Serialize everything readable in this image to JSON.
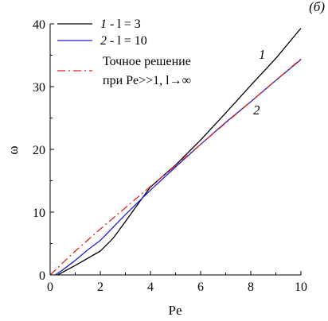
{
  "chart_data": {
    "type": "line",
    "panel_label": "(б)",
    "xlabel": "Pe",
    "ylabel": "ω",
    "xlim": [
      0,
      10
    ],
    "ylim": [
      0,
      40
    ],
    "xticks": [
      0,
      2,
      4,
      6,
      8,
      10
    ],
    "yticks": [
      0,
      10,
      20,
      30,
      40
    ],
    "legend_position": "top-left",
    "series": [
      {
        "legend_num": "1",
        "legend_rest": " - l = 3",
        "curve_label": "1",
        "color": "#000000",
        "dash": "solid",
        "x": [
          0.3,
          1.0,
          2.0,
          2.5,
          3.0,
          3.5,
          4.0,
          5.0,
          6.0,
          7.0,
          8.0,
          9.0,
          10.0
        ],
        "y": [
          0.0,
          1.5,
          3.8,
          5.8,
          8.5,
          11.3,
          14.0,
          17.5,
          21.5,
          25.8,
          30.2,
          34.5,
          39.3
        ]
      },
      {
        "legend_num": "2",
        "legend_rest": " - l = 10",
        "curve_label": "2",
        "color": "#1f1fd6",
        "dash": "solid",
        "x": [
          0.2,
          0.5,
          1.0,
          1.5,
          2.0,
          3.0,
          4.0,
          5.0,
          6.0,
          7.0,
          8.0,
          9.0,
          10.0
        ],
        "y": [
          0.0,
          0.8,
          2.3,
          4.0,
          5.5,
          9.6,
          13.5,
          17.2,
          20.8,
          24.3,
          27.6,
          31.0,
          34.3
        ]
      },
      {
        "legend_line1": "Точное решение",
        "legend_line2": "при Pe>>1, l→∞",
        "color": "#e0201c",
        "dash": "dashdot",
        "x": [
          0,
          1,
          2,
          3,
          4,
          5,
          6,
          7,
          8,
          9,
          10
        ],
        "y": [
          0,
          3.8,
          7.3,
          10.7,
          14.1,
          17.4,
          20.8,
          24.2,
          27.6,
          31.0,
          34.4
        ]
      }
    ]
  }
}
